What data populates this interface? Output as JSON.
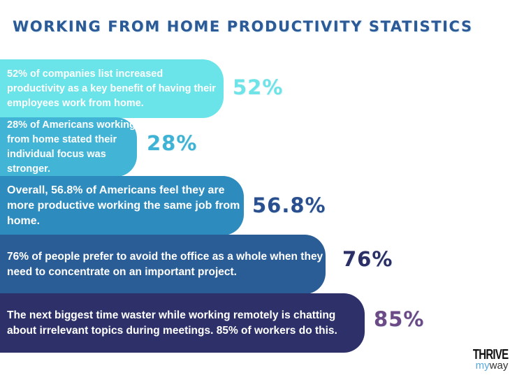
{
  "chart_data": {
    "type": "bar",
    "title": "WORKING FROM HOME PRODUCTIVITY STATISTICS",
    "orientation": "horizontal",
    "items": [
      {
        "text": "52% of companies list increased productivity as a key benefit of having their employees work from home.",
        "label": "52%",
        "value": 52,
        "bar_color": "#6ae4e8",
        "label_color": "#6ee3e8"
      },
      {
        "text": "28% of Americans working from home stated their individual focus was stronger.",
        "label": "28%",
        "value": 28,
        "bar_color": "#42b5d6",
        "label_color": "#3fb3d5"
      },
      {
        "text": "Overall, 56.8% of Americans feel they are more productive working the same job from home.",
        "label": "56.8%",
        "value": 56.8,
        "bar_color": "#2d8bbd",
        "label_color": "#2a4f8e"
      },
      {
        "text": "76% of people prefer to avoid the office as a whole when they need to concentrate on an important project.",
        "label": "76%",
        "value": 76,
        "bar_color": "#2a5d96",
        "label_color": "#2c2f66"
      },
      {
        "text": "The next biggest time waster while working remotely is chatting about irrelevant topics during meetings. 85% of workers do this.",
        "label": "85%",
        "value": 85,
        "bar_color": "#2e3169",
        "label_color": "#6b4a87"
      }
    ]
  },
  "logo": {
    "line1": "THRIVE",
    "line2a": "my",
    "line2b": "way",
    "color1": "#111111",
    "color2a": "#5aa9e0",
    "color2b": "#333333"
  }
}
